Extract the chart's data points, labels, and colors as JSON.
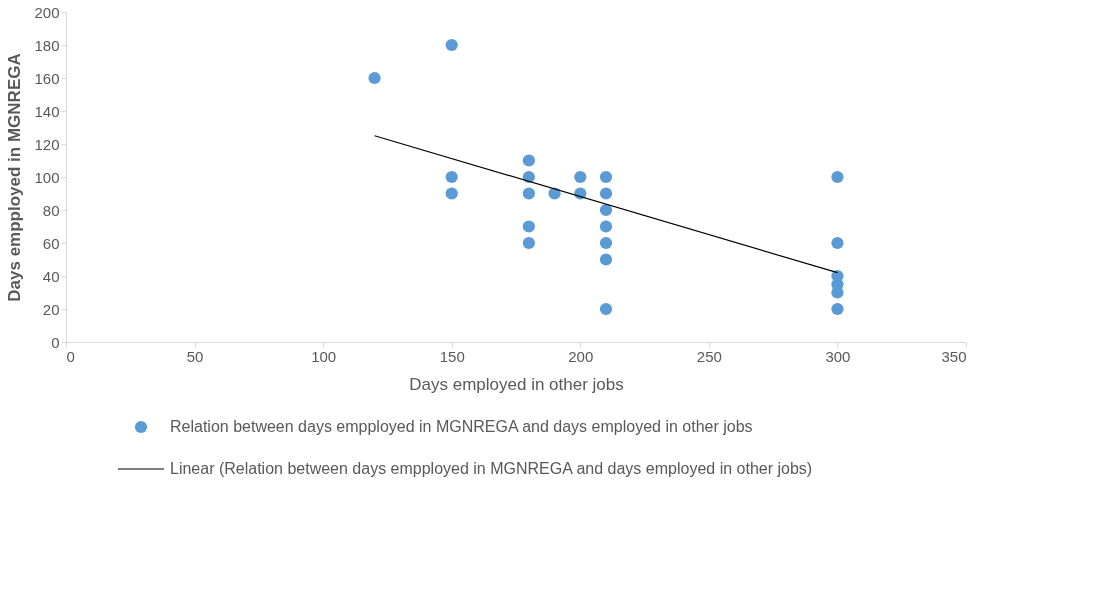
{
  "chart_data": {
    "type": "scatter",
    "xlabel": "Days employed in other jobs",
    "ylabel": "Days empployed in MGNREGA",
    "xlim": [
      0,
      350
    ],
    "xticks": [
      0,
      50,
      100,
      150,
      200,
      250,
      300,
      350
    ],
    "ylim": [
      0,
      200
    ],
    "yticks": [
      0,
      20,
      40,
      60,
      80,
      100,
      120,
      140,
      160,
      180,
      200
    ],
    "grid": false,
    "legend": "bottom",
    "marker": "circle",
    "series": [
      {
        "name": "Relation between days empployed in MGNREGA and days employed in other jobs",
        "color": "#5b9bd5",
        "x": [
          120,
          150,
          150,
          150,
          180,
          180,
          180,
          180,
          180,
          190,
          200,
          200,
          210,
          210,
          210,
          210,
          210,
          210,
          210,
          300,
          300,
          300,
          300,
          300,
          300
        ],
        "values": [
          160,
          180,
          100,
          90,
          110,
          100,
          90,
          70,
          60,
          90,
          100,
          90,
          100,
          90,
          80,
          70,
          60,
          50,
          20,
          100,
          60,
          40,
          35,
          30,
          20
        ]
      },
      {
        "name": "Linear (Relation between days empployed in MGNREGA and days employed in other jobs)",
        "type": "line",
        "marker": "none",
        "color": "#000000",
        "line_style": "solid",
        "x": [
          120,
          300
        ],
        "values": [
          125,
          42
        ]
      }
    ]
  }
}
